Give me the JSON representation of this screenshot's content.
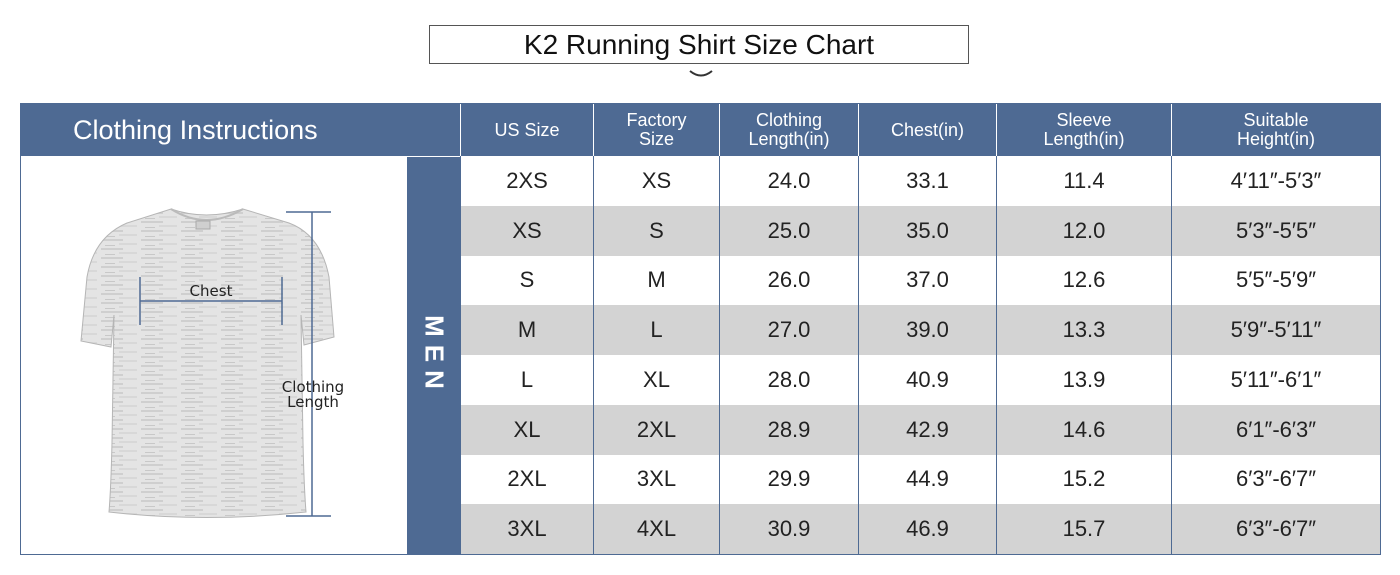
{
  "title": "K2 Running Shirt Size Chart",
  "instructions_label": "Clothing Instructions",
  "section_label": "MEN",
  "diagram": {
    "chest_label": "Chest",
    "length_label_line1": "Clothing",
    "length_label_line2": "Length"
  },
  "table": {
    "headers": [
      "US Size",
      "Factory\nSize",
      "Clothing\nLength(in)",
      "Chest(in)",
      "Sleeve\nLength(in)",
      "Suitable\nHeight(in)"
    ],
    "rows": [
      [
        "2XS",
        "XS",
        "24.0",
        "33.1",
        "11.4",
        "4′11″-5′3″"
      ],
      [
        "XS",
        "S",
        "25.0",
        "35.0",
        "12.0",
        "5′3″-5′5″"
      ],
      [
        "S",
        "M",
        "26.0",
        "37.0",
        "12.6",
        "5′5″-5′9″"
      ],
      [
        "M",
        "L",
        "27.0",
        "39.0",
        "13.3",
        "5′9″-5′11″"
      ],
      [
        "L",
        "XL",
        "28.0",
        "40.9",
        "13.9",
        "5′11″-6′1″"
      ],
      [
        "XL",
        "2XL",
        "28.9",
        "42.9",
        "14.6",
        "6′1″-6′3″"
      ],
      [
        "2XL",
        "3XL",
        "29.9",
        "44.9",
        "15.2",
        "6′3″-6′7″"
      ],
      [
        "3XL",
        "4XL",
        "30.9",
        "46.9",
        "15.7",
        "6′3″-6′7″"
      ]
    ]
  },
  "colors": {
    "header_blue": "#4e6a93",
    "row_alt_gray": "#d3d3d3"
  }
}
